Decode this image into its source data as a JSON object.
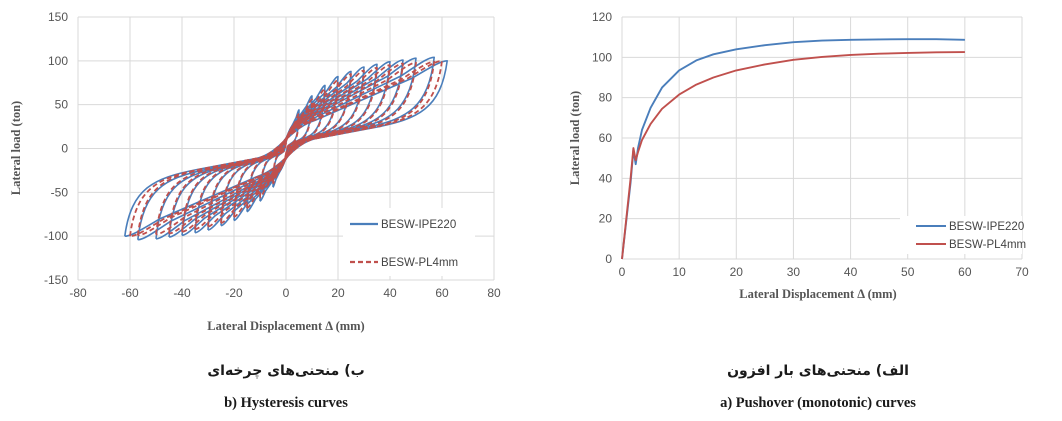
{
  "chart_data": [
    {
      "type": "line",
      "title": "",
      "xlabel": "Lateral Displacement Δ (mm)",
      "ylabel": "Lateral load (ton)",
      "xlim": [
        -80,
        80
      ],
      "ylim": [
        -150,
        150
      ],
      "x_ticks": [
        -80,
        -60,
        -40,
        -20,
        0,
        20,
        40,
        60,
        80
      ],
      "y_ticks": [
        -150,
        -100,
        -50,
        0,
        50,
        100,
        150
      ],
      "grid": true,
      "legend_position": "bottom-right",
      "series": [
        {
          "name": "BESW-IPE220",
          "color": "#4A7EBB",
          "style": "solid",
          "cycles": [
            {
              "amplitude": 5,
              "peak_load": 44
            },
            {
              "amplitude": 10,
              "peak_load": 60
            },
            {
              "amplitude": 15,
              "peak_load": 72
            },
            {
              "amplitude": 20,
              "peak_load": 82
            },
            {
              "amplitude": 25,
              "peak_load": 88
            },
            {
              "amplitude": 30,
              "peak_load": 93
            },
            {
              "amplitude": 35,
              "peak_load": 96
            },
            {
              "amplitude": 40,
              "peak_load": 99
            },
            {
              "amplitude": 45,
              "peak_load": 101
            },
            {
              "amplitude": 50,
              "peak_load": 103
            },
            {
              "amplitude": 57,
              "peak_load": 104
            },
            {
              "amplitude": 62,
              "peak_load": 100
            }
          ]
        },
        {
          "name": "BESW-PL4mm",
          "color": "#C0504D",
          "style": "dashed",
          "cycles": [
            {
              "amplitude": 5,
              "peak_load": 40
            },
            {
              "amplitude": 10,
              "peak_load": 56
            },
            {
              "amplitude": 15,
              "peak_load": 68
            },
            {
              "amplitude": 20,
              "peak_load": 78
            },
            {
              "amplitude": 25,
              "peak_load": 85
            },
            {
              "amplitude": 30,
              "peak_load": 89
            },
            {
              "amplitude": 35,
              "peak_load": 92
            },
            {
              "amplitude": 40,
              "peak_load": 95
            },
            {
              "amplitude": 45,
              "peak_load": 97
            },
            {
              "amplitude": 50,
              "peak_load": 98
            },
            {
              "amplitude": 57,
              "peak_load": 99
            },
            {
              "amplitude": 60,
              "peak_load": 100
            }
          ]
        }
      ]
    },
    {
      "type": "line",
      "title": "",
      "xlabel": "Lateral Displacement Δ (mm)",
      "ylabel": "Lateral load (ton)",
      "xlim": [
        0,
        70
      ],
      "ylim": [
        0,
        120
      ],
      "x_ticks": [
        0,
        10,
        20,
        30,
        40,
        50,
        60,
        70
      ],
      "y_ticks": [
        0,
        20,
        40,
        60,
        80,
        100,
        120
      ],
      "grid": true,
      "legend_position": "bottom-right",
      "series": [
        {
          "name": "BESW-IPE220",
          "color": "#4A7EBB",
          "x": [
            0,
            1.5,
            2.0,
            2.4,
            2.8,
            3.5,
            5,
            7,
            10,
            13,
            16,
            20,
            25,
            30,
            35,
            40,
            45,
            50,
            55,
            60
          ],
          "y": [
            0,
            38,
            54,
            47,
            55,
            64,
            75,
            85,
            93.5,
            98.5,
            101.5,
            104,
            106,
            107.5,
            108.3,
            108.7,
            108.9,
            109,
            109,
            108.7
          ]
        },
        {
          "name": "BESW-PL4mm",
          "color": "#C0504D",
          "x": [
            0,
            1.5,
            2.0,
            2.4,
            2.8,
            3.5,
            5,
            7,
            10,
            13,
            16,
            20,
            25,
            30,
            35,
            40,
            45,
            50,
            55,
            60
          ],
          "y": [
            0,
            40,
            55,
            49,
            53,
            59,
            67,
            74.5,
            81.5,
            86.5,
            90,
            93.5,
            96.5,
            98.8,
            100.2,
            101.2,
            101.8,
            102.2,
            102.5,
            102.6
          ]
        }
      ]
    }
  ],
  "captions": {
    "left_fa": "ب) منحنی‌های چرخه‌ای",
    "left_en": "b) Hysteresis  curves",
    "right_fa": "الف) منحنی‌های بار افزون",
    "right_en": "a) Pushover (monotonic) curves"
  }
}
